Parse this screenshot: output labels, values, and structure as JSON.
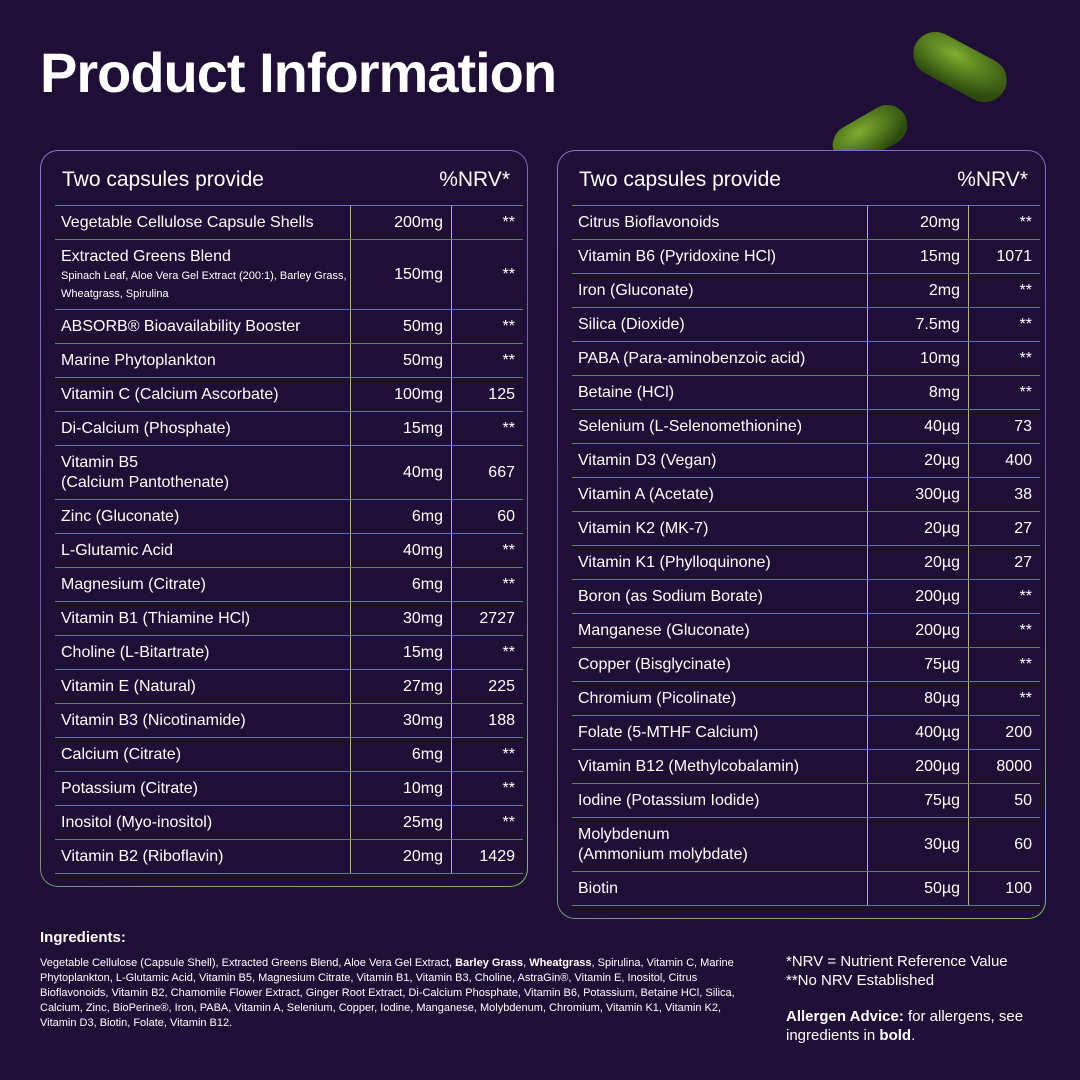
{
  "title": "Product Information",
  "tables": [
    {
      "header": [
        "Two capsules provide",
        "%NRV*"
      ],
      "rows": [
        {
          "name": "Vegetable Cellulose Capsule Shells",
          "amount": "200mg",
          "nrv": "**"
        },
        {
          "name": "Extracted Greens Blend",
          "detail": "Spinach Leaf, Aloe Vera Gel Extract (200:1), Barley Grass, Wheatgrass, Spirulina",
          "amount": "150mg",
          "nrv": "**"
        },
        {
          "name": "ABSORB® Bioavailability Booster",
          "amount": "50mg",
          "nrv": "**"
        },
        {
          "name": "Marine Phytoplankton",
          "amount": "50mg",
          "nrv": "**"
        },
        {
          "name": "Vitamin C (Calcium Ascorbate)",
          "amount": "100mg",
          "nrv": "125"
        },
        {
          "name": "Di-Calcium (Phosphate)",
          "amount": "15mg",
          "nrv": "**"
        },
        {
          "name": "Vitamin B5\n(Calcium Pantothenate)",
          "amount": "40mg",
          "nrv": "667"
        },
        {
          "name": "Zinc (Gluconate)",
          "amount": "6mg",
          "nrv": "60"
        },
        {
          "name": "L-Glutamic Acid",
          "amount": "40mg",
          "nrv": "**"
        },
        {
          "name": "Magnesium (Citrate)",
          "amount": "6mg",
          "nrv": "**"
        },
        {
          "name": "Vitamin B1 (Thiamine HCl)",
          "amount": "30mg",
          "nrv": "2727"
        },
        {
          "name": "Choline (L-Bitartrate)",
          "amount": "15mg",
          "nrv": "**"
        },
        {
          "name": "Vitamin E (Natural)",
          "amount": "27mg",
          "nrv": "225"
        },
        {
          "name": "Vitamin B3 (Nicotinamide)",
          "amount": "30mg",
          "nrv": "188"
        },
        {
          "name": "Calcium (Citrate)",
          "amount": "6mg",
          "nrv": "**"
        },
        {
          "name": "Potassium (Citrate)",
          "amount": "10mg",
          "nrv": "**"
        },
        {
          "name": "Inositol (Myo-inositol)",
          "amount": "25mg",
          "nrv": "**"
        },
        {
          "name": "Vitamin B2 (Riboflavin)",
          "amount": "20mg",
          "nrv": "1429"
        }
      ]
    },
    {
      "header": [
        "Two capsules provide",
        "%NRV*"
      ],
      "rows": [
        {
          "name": "Citrus Bioflavonoids",
          "amount": "20mg",
          "nrv": "**"
        },
        {
          "name": "Vitamin B6 (Pyridoxine HCl)",
          "amount": "15mg",
          "nrv": "1071"
        },
        {
          "name": "Iron (Gluconate)",
          "amount": "2mg",
          "nrv": "**"
        },
        {
          "name": "Silica (Dioxide)",
          "amount": "7.5mg",
          "nrv": "**"
        },
        {
          "name": "PABA (Para-aminobenzoic acid)",
          "amount": "10mg",
          "nrv": "**"
        },
        {
          "name": "Betaine (HCl)",
          "amount": "8mg",
          "nrv": "**"
        },
        {
          "name": "Selenium (L-Selenomethionine)",
          "amount": "40µg",
          "nrv": "73"
        },
        {
          "name": "Vitamin D3 (Vegan)",
          "amount": "20µg",
          "nrv": "400"
        },
        {
          "name": "Vitamin A (Acetate)",
          "amount": "300µg",
          "nrv": "38"
        },
        {
          "name": "Vitamin K2 (MK-7)",
          "amount": "20µg",
          "nrv": "27"
        },
        {
          "name": "Vitamin K1 (Phylloquinone)",
          "amount": "20µg",
          "nrv": "27"
        },
        {
          "name": "Boron (as Sodium Borate)",
          "amount": "200µg",
          "nrv": "**"
        },
        {
          "name": "Manganese (Gluconate)",
          "amount": "200µg",
          "nrv": "**"
        },
        {
          "name": "Copper (Bisglycinate)",
          "amount": "75µg",
          "nrv": "**"
        },
        {
          "name": "Chromium (Picolinate)",
          "amount": "80µg",
          "nrv": "**"
        },
        {
          "name": "Folate (5-MTHF Calcium)",
          "amount": "400µg",
          "nrv": "200"
        },
        {
          "name": "Vitamin B12 (Methylcobalamin)",
          "amount": "200µg",
          "nrv": "8000"
        },
        {
          "name": "Iodine (Potassium Iodide)",
          "amount": "75µg",
          "nrv": "50"
        },
        {
          "name": "Molybdenum\n(Ammonium molybdate)",
          "amount": "30µg",
          "nrv": "60"
        },
        {
          "name": "Biotin",
          "amount": "50µg",
          "nrv": "100"
        }
      ]
    }
  ],
  "ingredients": {
    "heading": "Ingredients:",
    "segments": [
      {
        "text": "Vegetable Cellulose (Capsule Shell), Extracted Greens Blend, Aloe Vera Gel Extract, "
      },
      {
        "text": "Barley Grass",
        "bold": true
      },
      {
        "text": ", "
      },
      {
        "text": "Wheatgrass",
        "bold": true
      },
      {
        "text": ", Spirulina, Vitamin C, Marine Phytoplankton, L-Glutamic Acid, Vitamin B5, Magnesium Citrate, Vitamin B1, Vitamin B3, Choline, AstraGin®, Vitamin E, Inositol, Citrus Bioflavonoids, Vitamin B2, Chamomile Flower Extract, Ginger Root Extract, Di-Calcium Phosphate, Vitamin B6, Potassium, Betaine HCl, Silica, Calcium, Zinc, BioPerine®, Iron, PABA, Vitamin A, Selenium, Copper, Iodine, Manganese, Molybdenum, Chromium, Vitamin K1, Vitamin K2, Vitamin D3, Biotin, Folate, Vitamin B12."
      }
    ]
  },
  "notes": [
    "*NRV = Nutrient Reference Value",
    "**No NRV Established"
  ],
  "allergen": [
    {
      "text": "Allergen Advice:",
      "bold": true
    },
    {
      "text": " for allergens, see ingredients in "
    },
    {
      "text": "bold",
      "bold": true
    },
    {
      "text": "."
    }
  ]
}
